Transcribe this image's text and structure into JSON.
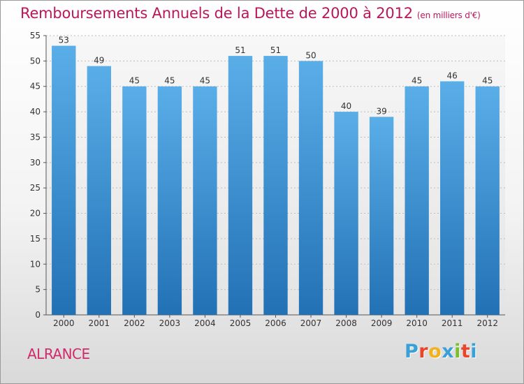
{
  "header": {
    "title": "Remboursements Annuels de la Dette de 2000 à 2012",
    "unit": "(en milliers d'€)"
  },
  "commune": "ALRANCE",
  "brand": {
    "text": "Proxiti",
    "letters": [
      "P",
      "r",
      "o",
      "x",
      "i",
      "t",
      "i"
    ],
    "colors": [
      "#3aa0d8",
      "#e8452c",
      "#f2b21b",
      "#3aa0d8",
      "#7bbf2a",
      "#e8452c",
      "#3aa0d8"
    ]
  },
  "chart_data": {
    "type": "bar",
    "categories": [
      "2000",
      "2001",
      "2002",
      "2003",
      "2004",
      "2005",
      "2006",
      "2007",
      "2008",
      "2009",
      "2010",
      "2011",
      "2012"
    ],
    "values": [
      53,
      49,
      45,
      45,
      45,
      51,
      51,
      50,
      40,
      39,
      45,
      46,
      45
    ],
    "ylim": [
      0,
      55
    ],
    "yticks": [
      0,
      5,
      10,
      15,
      20,
      25,
      30,
      35,
      40,
      45,
      50,
      55
    ],
    "bar_color": "#3a8fd6",
    "grid": true
  }
}
